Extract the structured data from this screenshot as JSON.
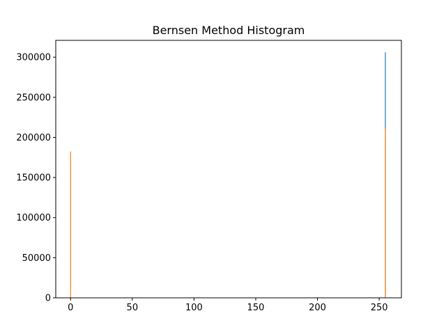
{
  "chart_data": {
    "type": "bar",
    "title": "Bernsen Method Histogram",
    "xlabel": "",
    "ylabel": "",
    "xlim": [
      -12,
      268
    ],
    "ylim": [
      0,
      321000
    ],
    "grid": false,
    "legend": "none",
    "xticks": [
      0,
      50,
      100,
      150,
      200,
      250
    ],
    "yticks": [
      0,
      50000,
      100000,
      150000,
      200000,
      250000,
      300000
    ],
    "series": [
      {
        "color": "#1f77b4",
        "points": [
          {
            "x": 0,
            "y": 0
          },
          {
            "x": 255,
            "y": 306000
          }
        ]
      },
      {
        "color": "#ff7f0e",
        "points": [
          {
            "x": 0,
            "y": 182500
          },
          {
            "x": 255,
            "y": 211000
          }
        ]
      }
    ]
  }
}
